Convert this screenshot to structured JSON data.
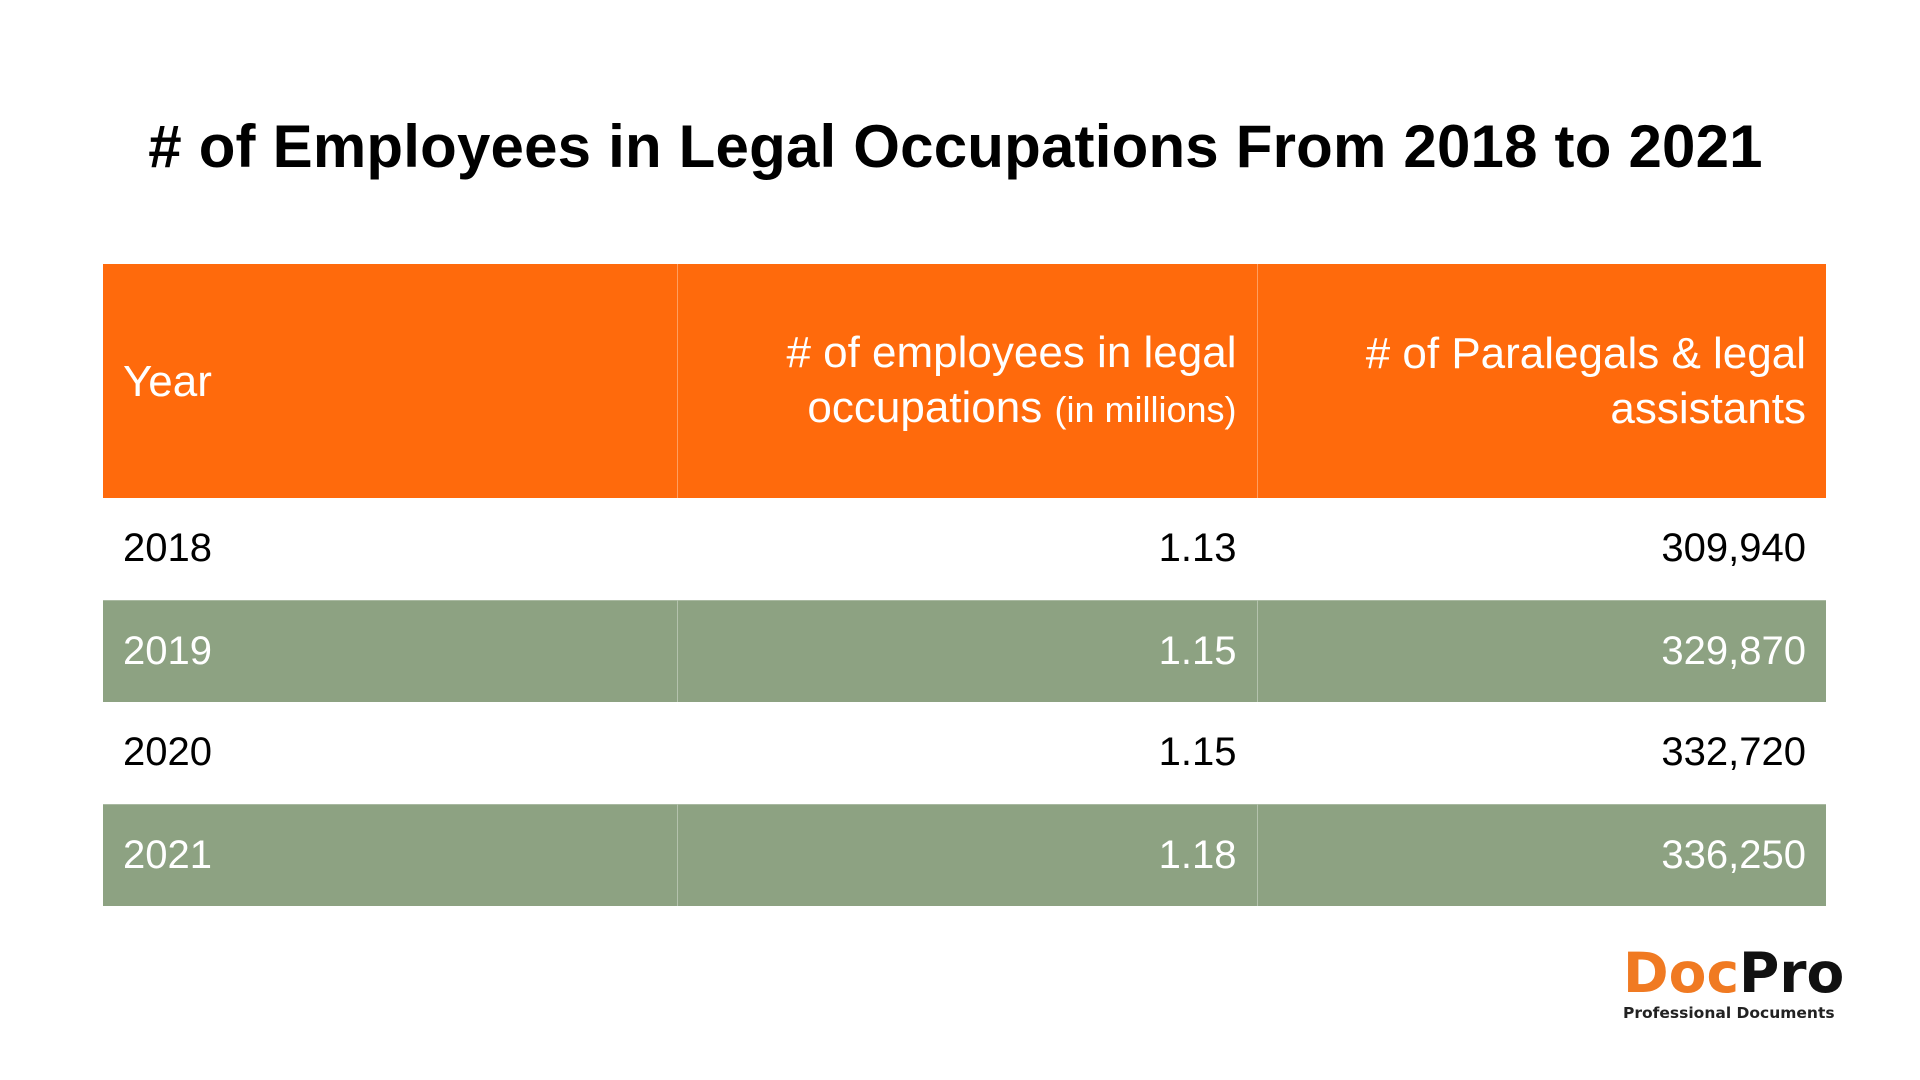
{
  "title": "# of Employees in Legal Occupations From 2018 to 2021",
  "table": {
    "headers": [
      {
        "main": "Year",
        "sub": ""
      },
      {
        "main": "# of employees in legal occupations",
        "sub": "(in millions)"
      },
      {
        "main": "# of Paralegals & legal assistants",
        "sub": ""
      }
    ],
    "rows": [
      {
        "year": "2018",
        "employees": "1.13",
        "paralegals": "309,940"
      },
      {
        "year": "2019",
        "employees": "1.15",
        "paralegals": "329,870"
      },
      {
        "year": "2020",
        "employees": "1.15",
        "paralegals": "332,720"
      },
      {
        "year": "2021",
        "employees": "1.18",
        "paralegals": "336,250"
      }
    ]
  },
  "colors": {
    "header_bg": "#ff6a0c",
    "band_bg": "#8da282",
    "logo_accent": "#f07a22"
  },
  "logo": {
    "part1": "Doc",
    "part2": "Pro",
    "tagline": "Professional Documents"
  },
  "chart_data": {
    "type": "table",
    "title": "# of Employees in Legal Occupations From 2018 to 2021",
    "columns": [
      "Year",
      "# of employees in legal occupations (in millions)",
      "# of Paralegals & legal assistants"
    ],
    "categories": [
      "2018",
      "2019",
      "2020",
      "2021"
    ],
    "series": [
      {
        "name": "# of employees in legal occupations (in millions)",
        "values": [
          1.13,
          1.15,
          1.15,
          1.18
        ]
      },
      {
        "name": "# of Paralegals & legal assistants",
        "values": [
          309940,
          329870,
          332720,
          336250
        ]
      }
    ]
  }
}
